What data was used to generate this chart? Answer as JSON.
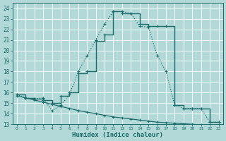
{
  "background_color": "#b2d8d8",
  "grid_color": "#c8e0e0",
  "line_color": "#1a6b6b",
  "xlabel": "Humidex (Indice chaleur)",
  "xlim": [
    -0.5,
    23.5
  ],
  "ylim": [
    13,
    24.5
  ],
  "yticks": [
    13,
    14,
    15,
    16,
    17,
    18,
    19,
    20,
    21,
    22,
    23,
    24
  ],
  "xticks": [
    0,
    1,
    2,
    3,
    4,
    5,
    6,
    7,
    8,
    9,
    10,
    11,
    12,
    13,
    14,
    15,
    16,
    17,
    18,
    19,
    20,
    21,
    22,
    23
  ],
  "smooth_x": [
    0,
    1,
    2,
    3,
    4,
    5,
    6,
    7,
    8,
    9,
    10,
    11,
    12,
    13,
    14,
    15,
    16,
    17,
    18,
    19,
    20,
    21,
    22,
    23
  ],
  "smooth_y": [
    15.8,
    15.5,
    15.4,
    15.5,
    14.3,
    14.8,
    15.8,
    18.0,
    19.5,
    21.0,
    22.5,
    23.7,
    23.7,
    23.5,
    22.3,
    22.2,
    19.5,
    18.0,
    14.8,
    14.5,
    14.5,
    14.5,
    13.2,
    13.2
  ],
  "step_x": [
    0,
    1,
    2,
    3,
    4,
    5,
    6,
    7,
    8,
    9,
    10,
    11,
    12,
    13,
    14,
    15,
    16,
    17,
    18,
    19,
    20,
    21,
    22,
    23
  ],
  "step_y": [
    15.8,
    15.5,
    15.4,
    15.3,
    15.0,
    15.7,
    16.0,
    17.8,
    18.0,
    20.9,
    21.5,
    23.7,
    23.5,
    23.5,
    22.5,
    22.3,
    22.3,
    22.3,
    14.8,
    14.5,
    14.5,
    14.5,
    13.2,
    13.2
  ],
  "decline_x": [
    0,
    1,
    2,
    3,
    4,
    5,
    6,
    7,
    8,
    9,
    10,
    11,
    12,
    13,
    14,
    15,
    16,
    17,
    18,
    19,
    20,
    21,
    22,
    23
  ],
  "decline_y": [
    15.7,
    15.5,
    15.3,
    15.1,
    14.9,
    14.7,
    14.5,
    14.3,
    14.15,
    14.0,
    13.85,
    13.7,
    13.6,
    13.5,
    13.4,
    13.3,
    13.2,
    13.15,
    13.1,
    13.05,
    13.0,
    12.95,
    12.9,
    12.85
  ]
}
